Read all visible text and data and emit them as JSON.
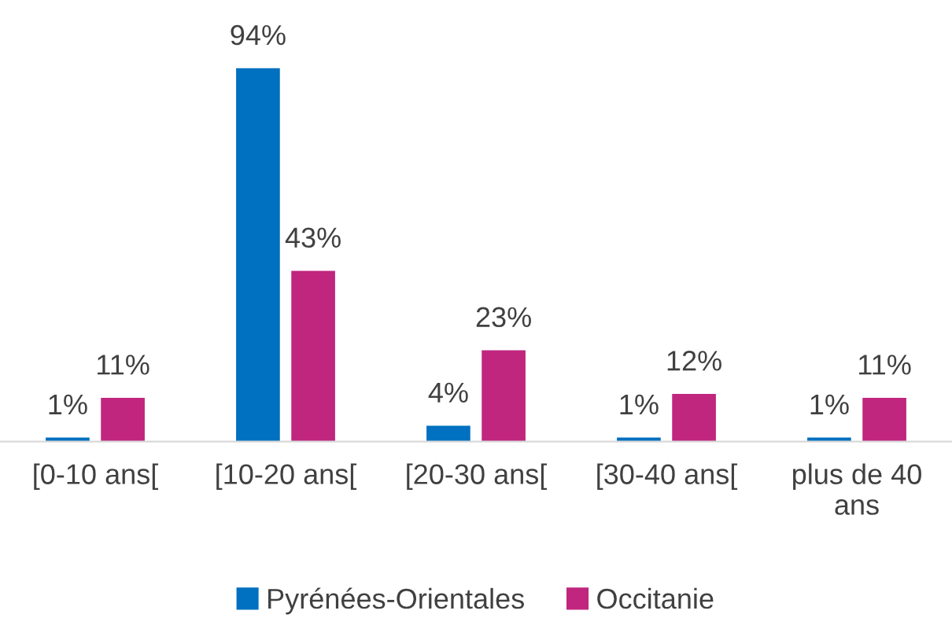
{
  "chart_data": {
    "type": "bar",
    "categories": [
      "[0-10 ans[",
      "[10-20 ans[",
      "[20-30 ans[",
      "[30-40 ans[",
      "plus de 40 ans"
    ],
    "series": [
      {
        "name": "Pyrénées-Orientales",
        "color": "#0070c0",
        "values": [
          1,
          94,
          4,
          1,
          1
        ],
        "value_labels": [
          "1%",
          "94%",
          "4%",
          "1%",
          "1%"
        ]
      },
      {
        "name": "Occitanie",
        "color": "#c0267e",
        "values": [
          11,
          43,
          23,
          12,
          11
        ],
        "value_labels": [
          "11%",
          "43%",
          "23%",
          "12%",
          "11%"
        ]
      }
    ],
    "legend": "bottom"
  }
}
